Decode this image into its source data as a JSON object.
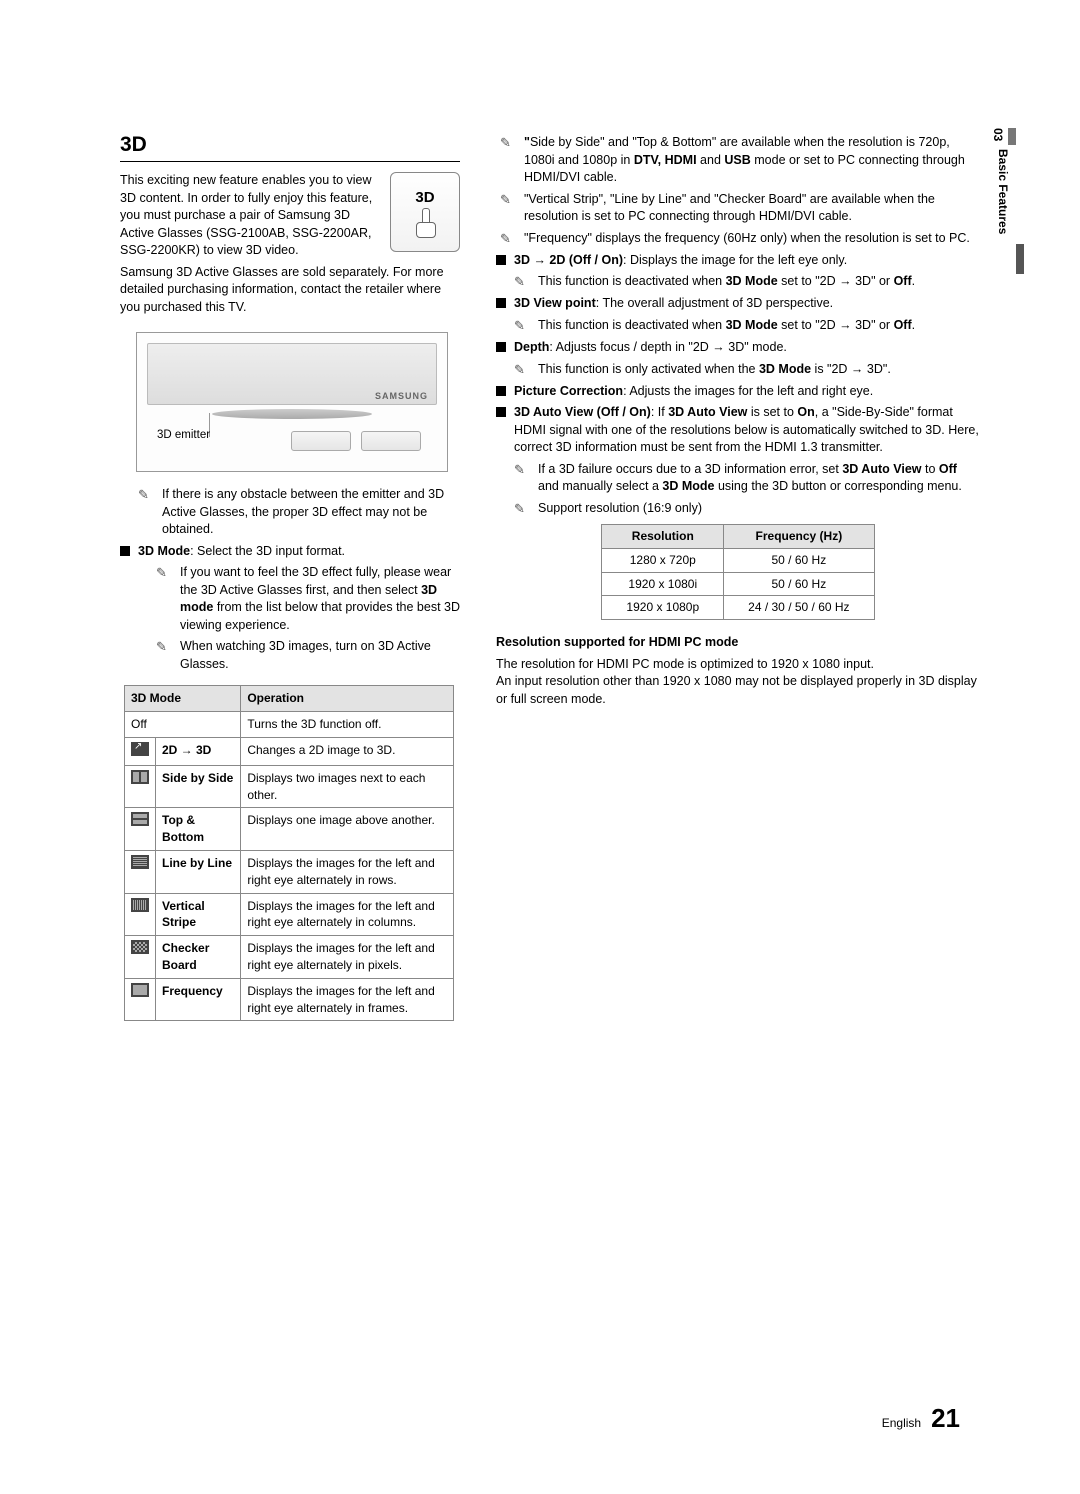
{
  "sideTab": {
    "num": "03",
    "label": "Basic Features"
  },
  "left": {
    "title": "3D",
    "intro1": "This exciting new feature enables you to view 3D content. In order to fully enjoy this feature, you must purchase a pair of Samsung 3D Active Glasses (SSG-2100AB, SSG-2200AR, SSG-2200KR) to view 3D video.",
    "intro2": "Samsung 3D Active Glasses are sold separately. For more detailed purchasing information, contact the retailer where you purchased this TV.",
    "iconLabel": "3D",
    "brand": "SAMSUNG",
    "emitterLabel": "3D emitter",
    "note_obstacle": "If there is any obstacle between the emitter and 3D Active Glasses, the proper 3D effect may not be obtained.",
    "mode_head": "3D Mode",
    "mode_head_after": ": Select the 3D input format.",
    "note_feel": "If you want to feel the 3D effect fully, please wear the 3D Active Glasses first, and then select ",
    "note_feel_b": "3D mode",
    "note_feel_after": " from the list below that provides the best 3D viewing experience.",
    "note_watch": "When watching 3D images, turn on 3D Active Glasses.",
    "table": {
      "headers": [
        "3D Mode",
        "Operation"
      ],
      "rows": [
        {
          "icon": "",
          "iconClass": "",
          "mode": "Off",
          "op": "Turns the 3D function off.",
          "span": true
        },
        {
          "icon": "",
          "iconClass": "arrow",
          "mode": "2D → 3D",
          "op": "Changes a 2D image to 3D."
        },
        {
          "icon": "",
          "iconClass": "sbs",
          "mode": "Side by Side",
          "op": "Displays two images next to each other."
        },
        {
          "icon": "",
          "iconClass": "tb",
          "mode": "Top & Bottom",
          "op": "Displays one image above another."
        },
        {
          "icon": "",
          "iconClass": "lines",
          "mode": "Line by Line",
          "op": "Displays the images for the left and right eye alternately in rows."
        },
        {
          "icon": "",
          "iconClass": "cols",
          "mode": "Vertical Stripe",
          "op": "Displays the images for the left and right eye alternately in columns."
        },
        {
          "icon": "",
          "iconClass": "checker",
          "mode": "Checker Board",
          "op": "Displays the images for the left and right eye alternately in pixels."
        },
        {
          "icon": "",
          "iconClass": "freq",
          "mode": "Frequency",
          "op": "Displays the images for the left and right eye alternately in frames."
        }
      ]
    }
  },
  "right": {
    "note_sbs_pre": "\"",
    "note_sbs": "Side by Side\" and \"Top & Bottom\" are available when the resolution is 720p, 1080i and 1080p in ",
    "note_sbs_b": "DTV, HDMI",
    "note_sbs_mid": " and ",
    "note_sbs_b2": "USB",
    "note_sbs_after": " mode or set to PC connecting through HDMI/DVI cable.",
    "note_vs": "\"Vertical Strip\", \"Line by Line\" and \"Checker Board\" are available when the resolution is set to PC connecting through HDMI/DVI cable.",
    "note_freq": "\"Frequency\" displays the frequency (60Hz only) when the resolution is set to PC.",
    "b_3d2d": "3D → 2D (Off / On)",
    "b_3d2d_after": ": Displays the image for the left eye only.",
    "note_3d2d_pre": "This function is deactivated when ",
    "note_3d2d_b": "3D Mode",
    "note_3d2d_mid": " set to \"2D → 3D\" or ",
    "note_3d2d_b2": "Off",
    "note_3d2d_after": ".",
    "b_view": "3D View point",
    "b_view_after": ": The overall adjustment of 3D perspective.",
    "b_depth": "Depth",
    "b_depth_after": ": Adjusts focus / depth in \"2D → 3D\" mode.",
    "note_depth_pre": "This function is only activated when the ",
    "note_depth_b": "3D Mode",
    "note_depth_after": " is \"2D → 3D\".",
    "b_pic": "Picture Correction",
    "b_pic_after": ": Adjusts the images for the left and right eye.",
    "b_auto": "3D Auto View (Off / On)",
    "b_auto_mid1": ": If ",
    "b_auto_b1": "3D Auto View",
    "b_auto_mid2": " is set to ",
    "b_auto_b2": "On",
    "b_auto_after": ", a \"Side-By-Side\" format HDMI signal with one of the resolutions below is automatically switched to 3D. Here, correct 3D information must be sent from the HDMI 1.3 transmitter.",
    "note_fail_pre": "If a 3D failure occurs due to a 3D information error, set ",
    "note_fail_b1": "3D Auto View",
    "note_fail_mid1": " to ",
    "note_fail_b2": "Off",
    "note_fail_mid2": " and manually select a ",
    "note_fail_b3": "3D Mode",
    "note_fail_after": " using the 3D button or corresponding menu.",
    "note_support": "Support resolution (16:9 only)",
    "resTable": {
      "headers": [
        "Resolution",
        "Frequency (Hz)"
      ],
      "rows": [
        [
          "1280 x 720p",
          "50 / 60 Hz"
        ],
        [
          "1920 x 1080i",
          "50 / 60 Hz"
        ],
        [
          "1920 x 1080p",
          "24 / 30 / 50 / 60 Hz"
        ]
      ]
    },
    "subhead": "Resolution supported for HDMI PC mode",
    "res_p1": "The resolution for HDMI PC mode is optimized to 1920 x 1080 input.",
    "res_p2": "An input resolution other than 1920 x 1080 may not be displayed properly in 3D display or full screen mode."
  },
  "footer": {
    "lang": "English",
    "page": "21"
  }
}
